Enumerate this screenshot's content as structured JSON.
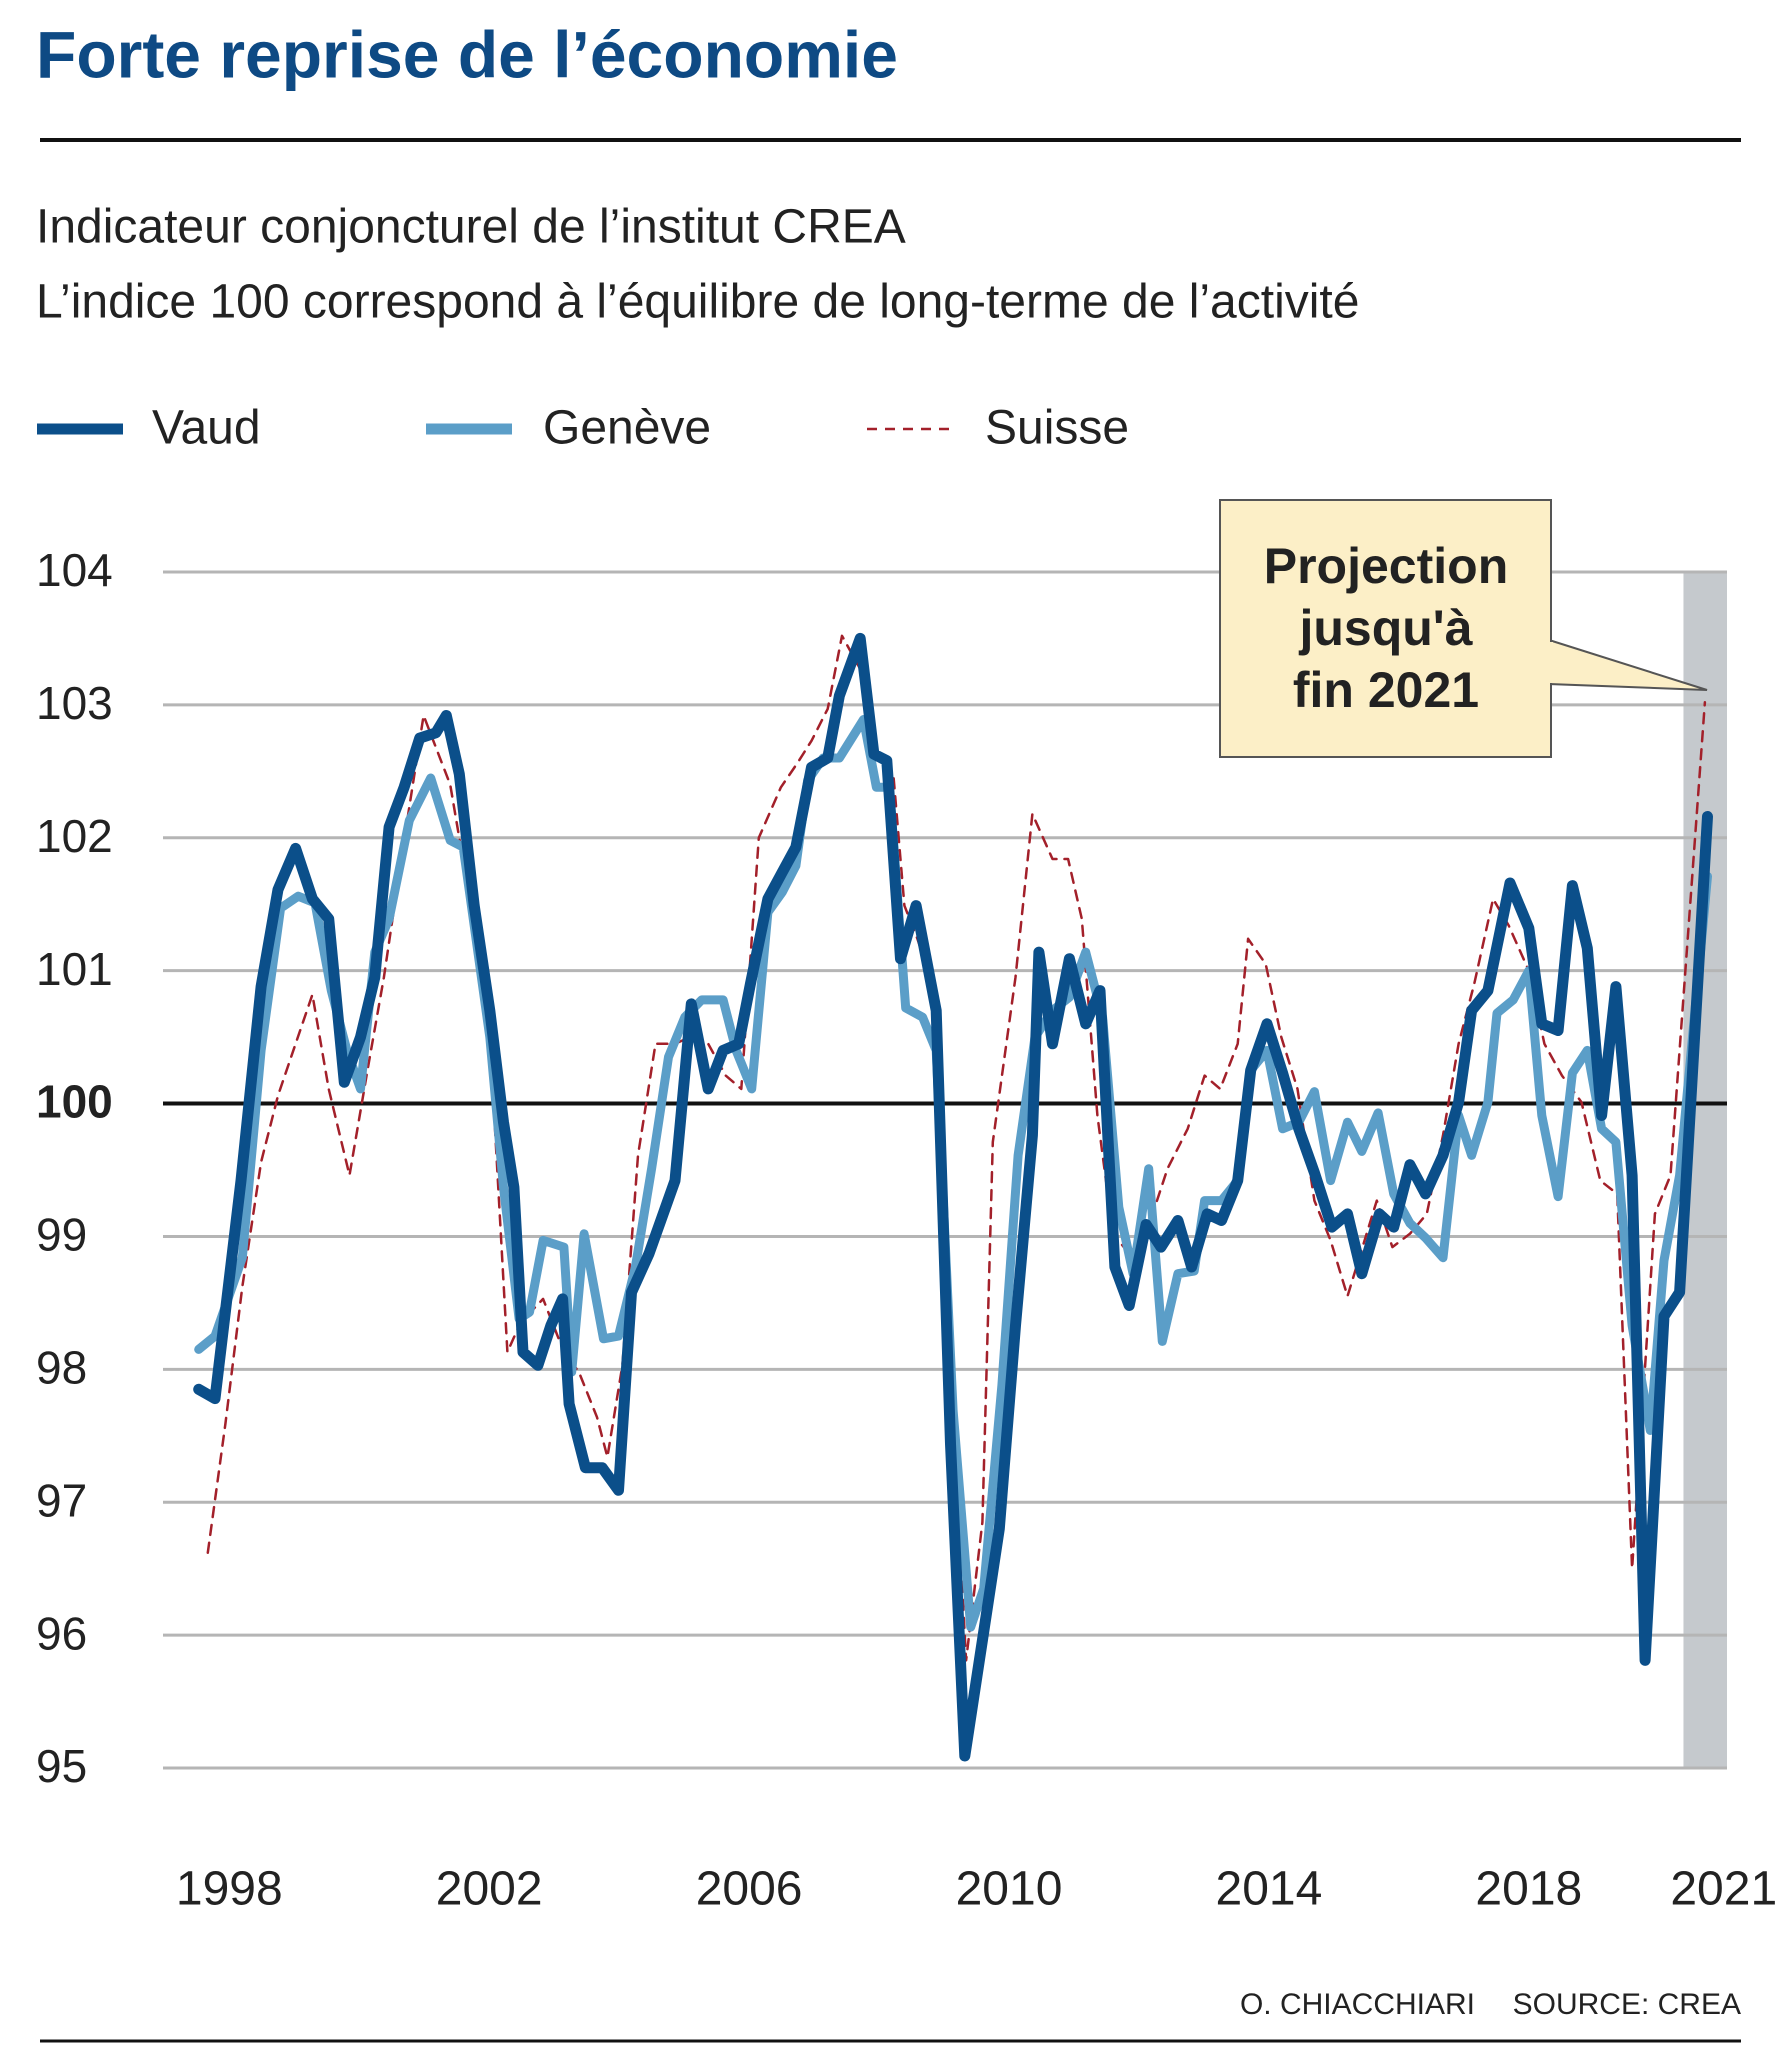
{
  "chart_data": {
    "type": "line",
    "title": "Forte reprise de l’économie",
    "subtitle": [
      "Indicateur conjoncturel de l’institut CREA",
      "L’indice 100 correspond à l’équilibre de long-terme de l’activité"
    ],
    "xlim": [
      1996.98,
      2021.05
    ],
    "xticks": [
      1998,
      2002,
      2006,
      2010,
      2014,
      2018,
      2021
    ],
    "ylim": [
      95,
      104
    ],
    "yticks": [
      95,
      96,
      97,
      98,
      99,
      100,
      101,
      102,
      103,
      104
    ],
    "reference_line": 100,
    "grid": true,
    "projection_start": 2020.38,
    "annotation": [
      "Projection",
      "jusqu'à",
      "fin 2021"
    ],
    "credits": [
      "O. CHIACCHIARI",
      "SOURCE: CREA"
    ],
    "series": [
      {
        "name": "Vaud",
        "color": "#0b4f8a",
        "style": "solid",
        "x": [
          1997.53,
          1997.78,
          1998.18,
          1998.49,
          1998.75,
          1999.02,
          1999.28,
          1999.53,
          1999.77,
          2000.02,
          2000.24,
          2000.46,
          2000.69,
          2000.93,
          2001.18,
          2001.34,
          2001.54,
          2001.77,
          2002.01,
          2002.22,
          2002.38,
          2002.52,
          2002.75,
          2002.95,
          2003.13,
          2003.23,
          2003.48,
          2003.74,
          2003.99,
          2004.19,
          2004.46,
          2004.86,
          2005.11,
          2005.37,
          2005.6,
          2005.84,
          2006.02,
          2006.29,
          2006.51,
          2006.72,
          2006.96,
          2007.21,
          2007.39,
          2007.71,
          2007.92,
          2008.12,
          2008.33,
          2008.57,
          2008.88,
          2009.1,
          2009.32,
          2009.59,
          2009.85,
          2010.1,
          2010.36,
          2010.46,
          2010.67,
          2010.93,
          2011.18,
          2011.4,
          2011.63,
          2011.85,
          2012.11,
          2012.34,
          2012.6,
          2012.81,
          2013.05,
          2013.27,
          2013.52,
          2013.72,
          2013.97,
          2014.21,
          2014.46,
          2014.7,
          2014.97,
          2015.21,
          2015.43,
          2015.7,
          2015.92,
          2016.17,
          2016.41,
          2016.68,
          2016.92,
          2017.12,
          2017.37,
          2017.71,
          2018.0,
          2018.2,
          2018.45,
          2018.67,
          2018.9,
          2019.12,
          2019.34,
          2019.59,
          2019.79,
          2020.08,
          2020.32,
          2020.75
        ],
        "values": [
          97.85,
          97.78,
          99.42,
          100.88,
          101.61,
          101.92,
          101.54,
          101.39,
          100.16,
          100.5,
          100.95,
          102.08,
          102.38,
          102.75,
          102.79,
          102.92,
          102.48,
          101.49,
          100.7,
          99.86,
          99.37,
          98.13,
          98.03,
          98.33,
          98.53,
          97.74,
          97.26,
          97.26,
          97.09,
          98.58,
          98.87,
          99.42,
          100.75,
          100.11,
          100.4,
          100.45,
          100.9,
          101.54,
          101.74,
          101.93,
          102.53,
          102.6,
          103.07,
          103.5,
          102.63,
          102.58,
          101.09,
          101.49,
          100.7,
          97.44,
          95.09,
          95.96,
          96.8,
          98.33,
          99.76,
          101.14,
          100.45,
          101.09,
          100.6,
          100.85,
          98.77,
          98.48,
          99.09,
          98.92,
          99.12,
          98.77,
          99.17,
          99.12,
          99.42,
          100.25,
          100.6,
          100.23,
          99.81,
          99.48,
          99.07,
          99.17,
          98.72,
          99.17,
          99.07,
          99.54,
          99.32,
          99.61,
          100.01,
          100.7,
          100.85,
          101.66,
          101.32,
          100.6,
          100.55,
          101.64,
          101.17,
          99.91,
          100.88,
          99.46,
          95.81,
          98.4,
          98.58,
          102.16
        ]
      },
      {
        "name": "Genève",
        "color": "#5b9ec8",
        "style": "solid",
        "x": [
          1997.53,
          1997.78,
          1998.2,
          1998.49,
          1998.79,
          1999.06,
          1999.32,
          1999.57,
          1999.81,
          2000.02,
          2000.24,
          2000.46,
          2000.77,
          2001.1,
          2001.4,
          2001.6,
          2002.01,
          2002.22,
          2002.46,
          2002.62,
          2002.83,
          2003.15,
          2003.27,
          2003.46,
          2003.76,
          2003.99,
          2004.25,
          2004.5,
          2004.76,
          2005.01,
          2005.27,
          2005.6,
          2005.8,
          2006.04,
          2006.29,
          2006.51,
          2006.72,
          2006.9,
          2007.14,
          2007.39,
          2007.76,
          2007.96,
          2008.16,
          2008.41,
          2008.67,
          2008.88,
          2009.14,
          2009.41,
          2009.61,
          2009.89,
          2010.14,
          2010.4,
          2010.67,
          2010.93,
          2011.18,
          2011.44,
          2011.69,
          2011.91,
          2012.15,
          2012.36,
          2012.6,
          2012.85,
          2013.01,
          2013.27,
          2013.52,
          2013.72,
          2013.97,
          2014.21,
          2014.46,
          2014.7,
          2014.95,
          2015.21,
          2015.43,
          2015.68,
          2015.92,
          2016.17,
          2016.41,
          2016.68,
          2016.92,
          2017.12,
          2017.37,
          2017.51,
          2017.76,
          2018.0,
          2018.2,
          2018.45,
          2018.67,
          2018.9,
          2019.12,
          2019.34,
          2019.59,
          2019.87,
          2020.08,
          2020.32,
          2020.75
        ],
        "values": [
          98.15,
          98.25,
          98.84,
          100.4,
          101.47,
          101.56,
          101.51,
          100.85,
          100.4,
          100.11,
          101.14,
          101.39,
          102.13,
          102.45,
          101.98,
          101.93,
          100.5,
          99.37,
          98.38,
          98.43,
          98.97,
          98.92,
          97.98,
          99.02,
          98.23,
          98.25,
          98.77,
          99.51,
          100.35,
          100.65,
          100.78,
          100.78,
          100.4,
          100.11,
          101.44,
          101.59,
          101.79,
          102.43,
          102.6,
          102.6,
          102.89,
          102.38,
          102.38,
          100.72,
          100.65,
          100.4,
          97.69,
          96.06,
          96.35,
          97.88,
          99.61,
          100.5,
          100.7,
          100.8,
          101.14,
          100.65,
          99.22,
          98.72,
          99.51,
          98.21,
          98.72,
          98.74,
          99.27,
          99.27,
          99.42,
          100.25,
          100.4,
          99.81,
          99.86,
          100.09,
          99.42,
          99.86,
          99.64,
          99.93,
          99.32,
          99.1,
          98.99,
          98.84,
          99.91,
          99.61,
          100.01,
          100.68,
          100.78,
          101.0,
          99.91,
          99.3,
          100.23,
          100.4,
          99.81,
          99.71,
          98.33,
          97.54,
          98.82,
          99.46,
          101.71
        ]
      },
      {
        "name": "Suisse",
        "color": "#a3202a",
        "style": "dashed",
        "x": [
          1997.67,
          1997.94,
          1998.2,
          1998.49,
          1998.75,
          1999.02,
          1999.28,
          1999.53,
          1999.85,
          2000.12,
          2000.38,
          2000.69,
          2000.99,
          2001.4,
          2001.77,
          2002.05,
          2002.28,
          2002.48,
          2002.83,
          2003.15,
          2003.38,
          2003.66,
          2003.82,
          2004.05,
          2004.29,
          2004.56,
          2004.86,
          2005.09,
          2005.37,
          2005.64,
          2005.88,
          2006.15,
          2006.49,
          2006.74,
          2006.96,
          2007.21,
          2007.43,
          2007.71,
          2007.96,
          2008.22,
          2008.39,
          2008.59,
          2008.88,
          2009.1,
          2009.34,
          2009.59,
          2009.75,
          2010.1,
          2010.36,
          2010.67,
          2010.91,
          2011.12,
          2011.36,
          2011.6,
          2011.85,
          2012.11,
          2012.44,
          2012.75,
          2013.01,
          2013.25,
          2013.52,
          2013.68,
          2013.95,
          2014.19,
          2014.44,
          2014.7,
          2014.95,
          2015.21,
          2015.41,
          2015.66,
          2015.9,
          2016.17,
          2016.43,
          2016.68,
          2016.92,
          2017.16,
          2017.45,
          2017.69,
          2018.0,
          2018.24,
          2018.51,
          2018.81,
          2019.1,
          2019.36,
          2019.59,
          2019.94,
          2020.18,
          2020.71
        ],
        "values": [
          96.62,
          97.59,
          98.62,
          99.56,
          100.06,
          100.45,
          100.82,
          100.11,
          99.46,
          100.23,
          100.95,
          101.98,
          102.92,
          102.4,
          101.34,
          100.16,
          98.13,
          98.35,
          98.53,
          98.13,
          97.98,
          97.64,
          97.34,
          98.03,
          99.61,
          100.45,
          100.45,
          100.5,
          100.45,
          100.21,
          100.11,
          102.0,
          102.38,
          102.56,
          102.73,
          102.97,
          103.52,
          103.27,
          102.63,
          102.48,
          101.49,
          101.24,
          100.8,
          98.03,
          95.81,
          96.85,
          99.71,
          100.95,
          102.18,
          101.84,
          101.84,
          101.39,
          99.91,
          99.02,
          98.87,
          99.02,
          99.51,
          99.81,
          100.21,
          100.11,
          100.45,
          101.24,
          101.05,
          100.5,
          100.11,
          99.27,
          98.97,
          98.55,
          98.87,
          99.27,
          98.92,
          99.02,
          99.17,
          99.76,
          100.45,
          100.9,
          101.54,
          101.34,
          101.0,
          100.45,
          100.21,
          100.01,
          99.42,
          99.32,
          96.5,
          99.17,
          99.46,
          103.02
        ]
      }
    ]
  }
}
